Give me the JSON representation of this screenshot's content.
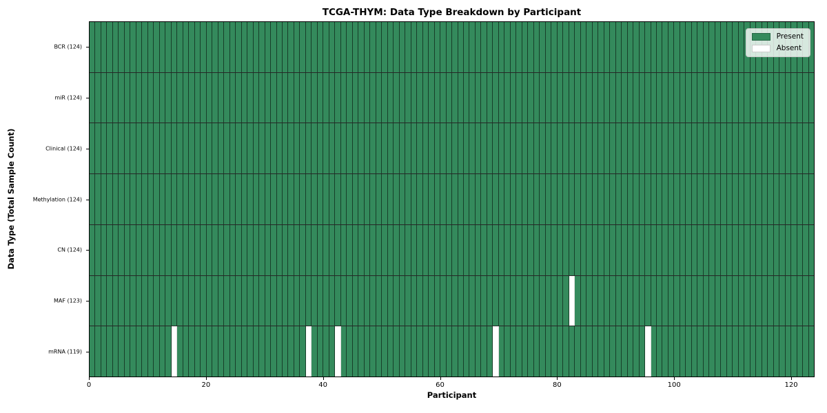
{
  "chart_data": {
    "type": "heatmap",
    "title": "TCGA-THYM: Data Type Breakdown by Participant",
    "xlabel": "Participant",
    "ylabel": "Data Type (Total Sample Count)",
    "x_ticks": [
      0,
      20,
      40,
      60,
      80,
      100,
      120
    ],
    "xlim": [
      0,
      124
    ],
    "n_participants": 124,
    "grid_on": true,
    "legend": {
      "position": "upper right",
      "entries": [
        {
          "label": "Present",
          "color": "#348a5c",
          "edge": "rgba(0,0,0,0.25)"
        },
        {
          "label": "Absent",
          "color": "#ffffff",
          "edge": "rgba(0,0,0,0.2)"
        }
      ]
    },
    "rows": [
      {
        "label": "BCR (124)",
        "data_type": "BCR",
        "total_samples": 124,
        "absent_participants": []
      },
      {
        "label": "miR (124)",
        "data_type": "miR",
        "total_samples": 124,
        "absent_participants": []
      },
      {
        "label": "Clinical (124)",
        "data_type": "Clinical",
        "total_samples": 124,
        "absent_participants": []
      },
      {
        "label": "Methylation (124)",
        "data_type": "Methylation",
        "total_samples": 124,
        "absent_participants": []
      },
      {
        "label": "CN (124)",
        "data_type": "CN",
        "total_samples": 124,
        "absent_participants": []
      },
      {
        "label": "MAF (123)",
        "data_type": "MAF",
        "total_samples": 123,
        "absent_participants": [
          82
        ]
      },
      {
        "label": "mRNA (119)",
        "data_type": "mRNA",
        "total_samples": 119,
        "absent_participants": [
          14,
          37,
          42,
          69,
          95
        ]
      }
    ],
    "colors": {
      "present": "#348a5c",
      "absent": "#ffffff",
      "cell_edge": "rgba(0,0,0,0.55)",
      "absent_cell_edge": "rgba(0,0,0,0.12)",
      "row_separator": "rgba(0,0,0,0.85)",
      "axis": "#000000",
      "background": "#ffffff"
    }
  }
}
